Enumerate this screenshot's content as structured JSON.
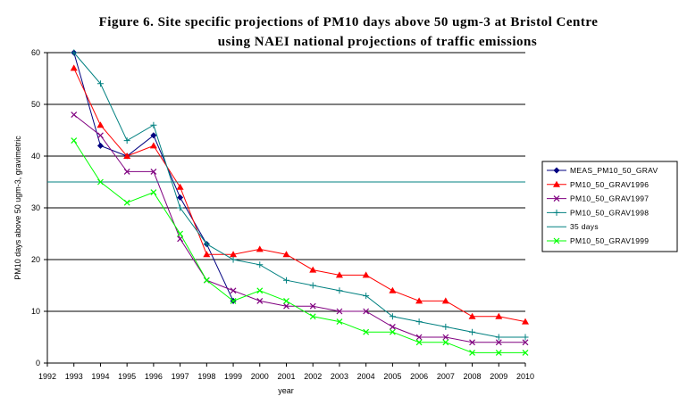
{
  "chart_data": {
    "type": "line",
    "title_line1": "Figure 6. Site specific projections of PM10 days above 50 ugm-3 at Bristol Centre",
    "title_line2": "using NAEI national projections of traffic emissions",
    "xlabel": "year",
    "ylabel": "PM10 days above 50 ugm-3, gravimetric",
    "xlim": [
      1992,
      2010
    ],
    "ylim": [
      0,
      60
    ],
    "x_ticks": [
      "1992",
      "1993",
      "1994",
      "1995",
      "1996",
      "1997",
      "1998",
      "1999",
      "2000",
      "2001",
      "2002",
      "2003",
      "2004",
      "2005",
      "2006",
      "2007",
      "2008",
      "2009",
      "2010"
    ],
    "y_ticks": [
      "0",
      "10",
      "20",
      "30",
      "40",
      "50",
      "60"
    ],
    "grid": "horizontal",
    "legend_position": "right",
    "series": [
      {
        "name": "MEAS_PM10_50_GRAV",
        "color": "#000080",
        "marker": "diamond",
        "x": [
          1993,
          1994,
          1995,
          1996,
          1997,
          1998,
          1999
        ],
        "y": [
          60,
          42,
          40,
          44,
          32,
          23,
          12
        ]
      },
      {
        "name": "PM10_50_GRAV1996",
        "color": "#ff0000",
        "marker": "triangle",
        "x": [
          1993,
          1994,
          1995,
          1996,
          1997,
          1998,
          1999,
          2000,
          2001,
          2002,
          2003,
          2004,
          2005,
          2006,
          2007,
          2008,
          2009,
          2010
        ],
        "y": [
          57,
          46,
          40,
          42,
          34,
          21,
          21,
          22,
          21,
          18,
          17,
          17,
          14,
          12,
          12,
          9,
          9,
          8
        ]
      },
      {
        "name": "PM10_50_GRAV1997",
        "color": "#800080",
        "marker": "x",
        "x": [
          1993,
          1994,
          1995,
          1996,
          1997,
          1998,
          1999,
          2000,
          2001,
          2002,
          2003,
          2004,
          2005,
          2006,
          2007,
          2008,
          2009,
          2010
        ],
        "y": [
          48,
          44,
          37,
          37,
          24,
          16,
          14,
          12,
          11,
          11,
          10,
          10,
          7,
          5,
          5,
          4,
          4,
          4
        ]
      },
      {
        "name": "PM10_50_GRAV1998",
        "color": "#008080",
        "marker": "plus",
        "x": [
          1993,
          1994,
          1995,
          1996,
          1997,
          1998,
          1999,
          2000,
          2001,
          2002,
          2003,
          2004,
          2005,
          2006,
          2007,
          2008,
          2009,
          2010
        ],
        "y": [
          60,
          54,
          43,
          46,
          30,
          23,
          20,
          19,
          16,
          15,
          14,
          13,
          9,
          8,
          7,
          6,
          5,
          5
        ]
      },
      {
        "name": "35 days",
        "color": "#008080",
        "marker": "none",
        "x": [
          1992,
          2010
        ],
        "y": [
          35,
          35
        ]
      },
      {
        "name": "PM10_50_GRAV1999",
        "color": "#00ff00",
        "marker": "x",
        "x": [
          1993,
          1994,
          1995,
          1996,
          1997,
          1998,
          1999,
          2000,
          2001,
          2002,
          2003,
          2004,
          2005,
          2006,
          2007,
          2008,
          2009,
          2010
        ],
        "y": [
          43,
          35,
          31,
          33,
          25,
          16,
          12,
          14,
          12,
          9,
          8,
          6,
          6,
          4,
          4,
          2,
          2,
          2
        ]
      }
    ]
  }
}
